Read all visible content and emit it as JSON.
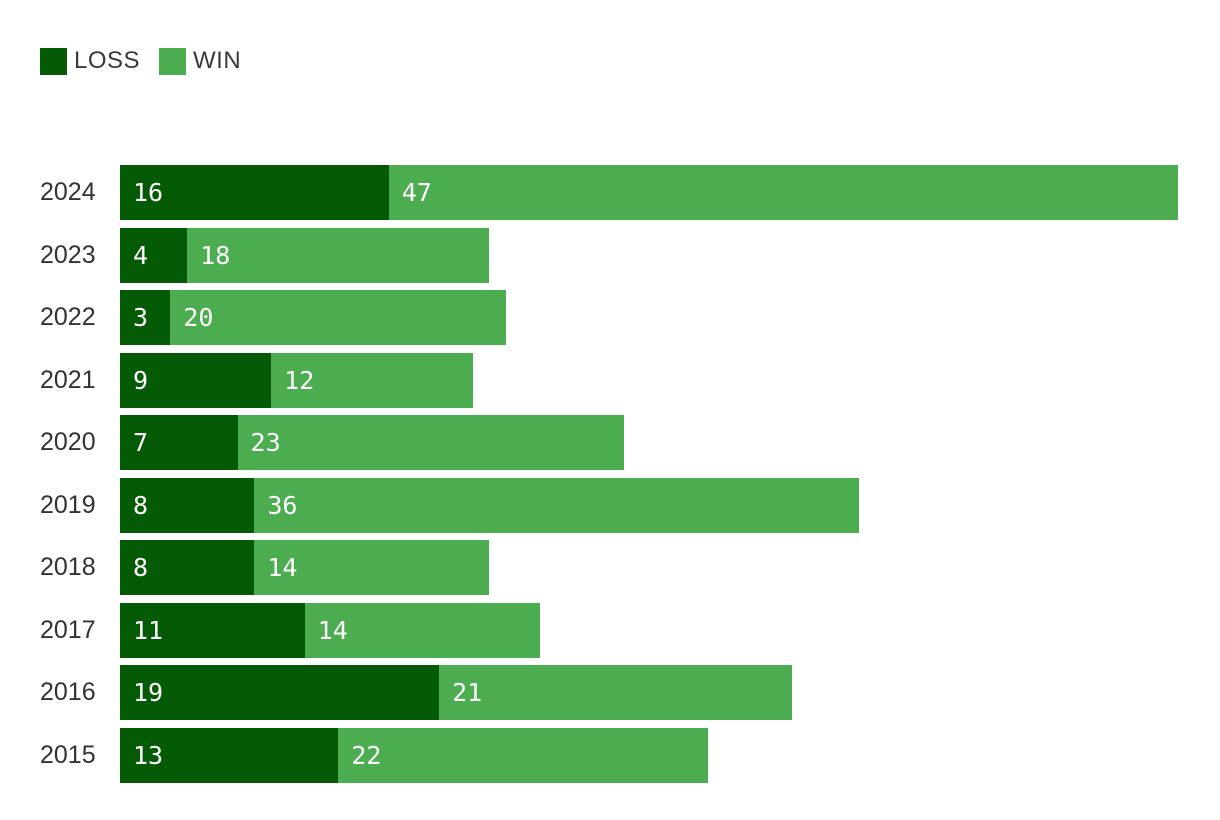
{
  "legend": {
    "items": [
      {
        "label": "LOSS",
        "color": "#055A06"
      },
      {
        "label": "WIN",
        "color": "#4BAD50"
      }
    ]
  },
  "chart_data": {
    "type": "bar",
    "orientation": "horizontal",
    "stacked": true,
    "title": "",
    "xlabel": "",
    "ylabel": "",
    "grid": false,
    "legend_position": "top-left",
    "value_labels": "inside-start",
    "value_label_color": "#ffffff",
    "axis_max": 63,
    "categories": [
      "2024",
      "2023",
      "2022",
      "2021",
      "2020",
      "2019",
      "2018",
      "2017",
      "2016",
      "2015"
    ],
    "series": [
      {
        "name": "LOSS",
        "color": "#055A06",
        "values": [
          16,
          4,
          3,
          9,
          7,
          8,
          8,
          11,
          19,
          13
        ]
      },
      {
        "name": "WIN",
        "color": "#4BAD50",
        "values": [
          47,
          18,
          20,
          12,
          23,
          36,
          14,
          14,
          21,
          22
        ]
      }
    ]
  }
}
